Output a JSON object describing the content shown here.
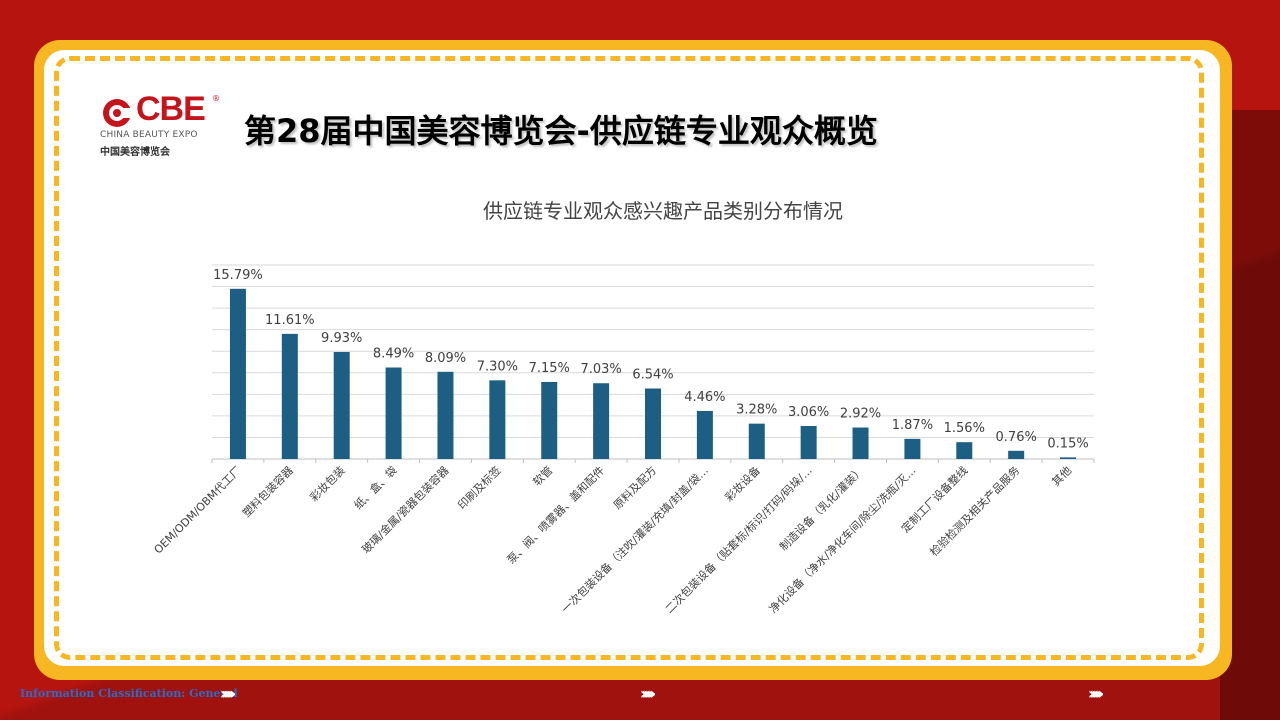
{
  "header": {
    "page_title": "第28届中国美容博览会-供应链专业观众概览",
    "logo": {
      "brand": "CBE",
      "registered": "®",
      "english_name": "CHINA BEAUTY EXPO",
      "chinese_name": "中国美容博览会"
    }
  },
  "footer": {
    "classification": "Information Classification: General",
    "chevrons": "›››››››"
  },
  "colors": {
    "background_red": "#b5140f",
    "frame_yellow": "#f6b722",
    "bar": "#1c5f82"
  },
  "chart_data": {
    "type": "bar",
    "title": "供应链专业观众感兴趣产品类别分布情况",
    "categories": [
      "OEM/ODM/OBM代工厂",
      "塑料包装容器",
      "彩妆包装",
      "纸、盒、袋",
      "玻璃/金属/瓷器包装容器",
      "印刷及标签",
      "软管",
      "泵、阀、喷雾器、盖和配件",
      "原料及配方",
      "一次包装设备（注吹/灌装/充填/封盖/袋…",
      "彩妆设备",
      "二次包装设备（贴套标/标识/打码/码垛/…",
      "制造设备（乳化/灌装）",
      "净化设备（净水/净化车间/除尘/洗瓶/灭…",
      "定制工厂设备整线",
      "检验检测及相关产品服务",
      "其他"
    ],
    "values": [
      15.79,
      11.61,
      9.93,
      8.49,
      8.09,
      7.3,
      7.15,
      7.03,
      6.54,
      4.46,
      3.28,
      3.06,
      2.92,
      1.87,
      1.56,
      0.76,
      0.15
    ],
    "data_labels": [
      "15.79%",
      "11.61%",
      "9.93%",
      "8.49%",
      "8.09%",
      "7.30%",
      "7.15%",
      "7.03%",
      "6.54%",
      "4.46%",
      "3.28%",
      "3.06%",
      "2.92%",
      "1.87%",
      "1.56%",
      "0.76%",
      "0.15%"
    ],
    "ylim": [
      0,
      18
    ],
    "grid": true,
    "legend": "none",
    "xlabel": "",
    "ylabel": ""
  }
}
